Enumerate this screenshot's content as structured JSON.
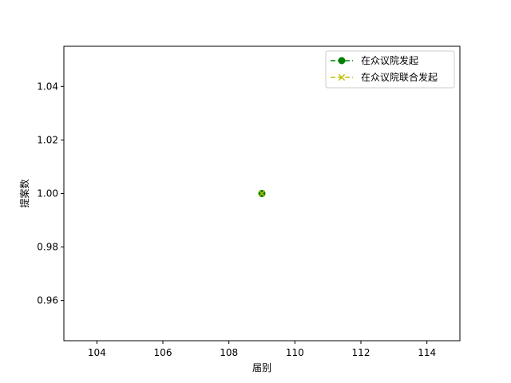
{
  "chart_data": {
    "type": "line",
    "title": "",
    "xlabel": "届别",
    "ylabel": "提案数",
    "xlim": [
      103,
      115
    ],
    "ylim": [
      0.945,
      1.055
    ],
    "xticks": [
      104,
      106,
      108,
      110,
      112,
      114
    ],
    "yticks": [
      0.96,
      0.98,
      1.0,
      1.02,
      1.04
    ],
    "ytick_labels": [
      "0.96",
      "0.98",
      "1.00",
      "1.02",
      "1.04"
    ],
    "grid": false,
    "legend": "top-right",
    "series": [
      {
        "name": "在众议院发起",
        "x": [
          109
        ],
        "y": [
          1
        ],
        "color": "#008000",
        "marker": "circle",
        "linestyle": "dashed"
      },
      {
        "name": "在众议院联合发起",
        "x": [
          109
        ],
        "y": [
          1
        ],
        "color": "#bfbf00",
        "marker": "x",
        "linestyle": "dashed"
      }
    ]
  }
}
